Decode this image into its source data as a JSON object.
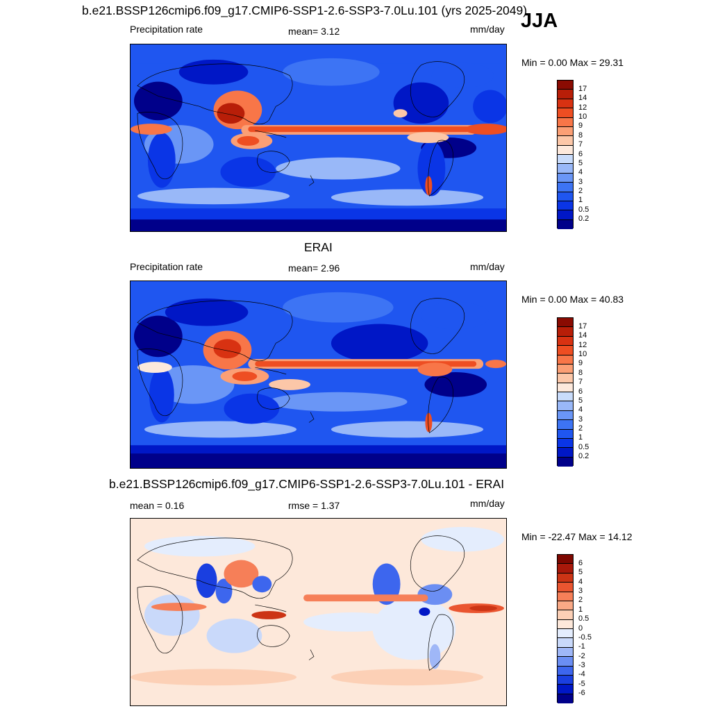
{
  "title": "b.e21.BSSP126cmip6.f09_g17.CMIP6-SSP1-2.6-SSP3-7.0Lu.101 (yrs 2025-2049)",
  "season": "JJA",
  "panels": [
    {
      "heading": "",
      "left_label": "Precipitation rate",
      "center_label": "mean=   3.12",
      "units": "mm/day",
      "minmax": "Min =    0.00 Max =  29.31",
      "levels": [
        "0.2",
        "0.5",
        "1",
        "2",
        "3",
        "4",
        "5",
        "6",
        "7",
        "8",
        "9",
        "10",
        "12",
        "14",
        "17"
      ],
      "colors": [
        "#00008a",
        "#0017c6",
        "#0a35e6",
        "#1f56f0",
        "#3d74f4",
        "#6a96f6",
        "#99b8f8",
        "#c9dcfb",
        "#fde9dc",
        "#fcc7a8",
        "#fb9f75",
        "#f87648",
        "#ee4e22",
        "#d83212",
        "#b81e08",
        "#8a0b02"
      ]
    },
    {
      "heading": "ERAI",
      "left_label": "Precipitation rate",
      "center_label": "mean=   2.96",
      "units": "mm/day",
      "minmax": "Min =    0.00 Max =  40.83",
      "levels": [
        "0.2",
        "0.5",
        "1",
        "2",
        "3",
        "4",
        "5",
        "6",
        "7",
        "8",
        "9",
        "10",
        "12",
        "14",
        "17"
      ],
      "colors": [
        "#00008a",
        "#0017c6",
        "#0a35e6",
        "#1f56f0",
        "#3d74f4",
        "#6a96f6",
        "#99b8f8",
        "#c9dcfb",
        "#fde9dc",
        "#fcc7a8",
        "#fb9f75",
        "#f87648",
        "#ee4e22",
        "#d83212",
        "#b81e08",
        "#8a0b02"
      ]
    },
    {
      "heading": "b.e21.BSSP126cmip6.f09_g17.CMIP6-SSP1-2.6-SSP3-7.0Lu.101 - ERAI",
      "left_label": "mean =   0.16",
      "center_label": "rmse =   1.37",
      "units": "mm/day",
      "minmax": "Min = -22.47 Max =  14.12",
      "levels": [
        "-6",
        "-5",
        "-4",
        "-3",
        "-2",
        "-1",
        "-0.5",
        "0",
        "0.5",
        "1",
        "2",
        "3",
        "4",
        "5",
        "6"
      ],
      "colors": [
        "#00008a",
        "#0017c6",
        "#1a3fe0",
        "#3d66ee",
        "#6b8ef3",
        "#9fb7f7",
        "#c9d9fa",
        "#e4edfd",
        "#fde8da",
        "#fcd0b6",
        "#f9a986",
        "#f67f58",
        "#ea5530",
        "#cc3415",
        "#a8180a",
        "#7d0700"
      ]
    }
  ]
}
